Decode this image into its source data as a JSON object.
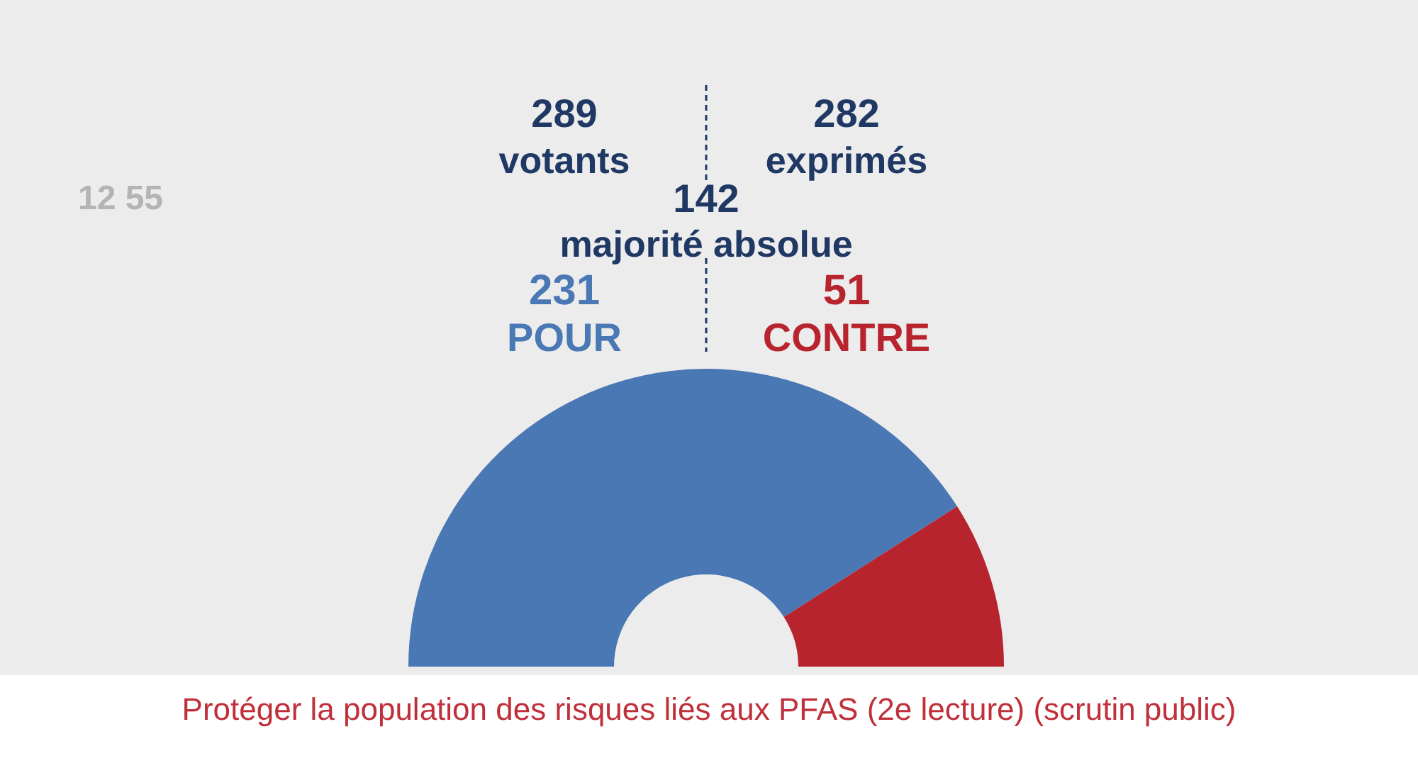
{
  "chart_data": {
    "type": "other",
    "title": "Protéger la population des risques liés aux PFAS (2e lecture) (scrutin public)",
    "categories": [
      "POUR",
      "CONTRE"
    ],
    "values": [
      231,
      51
    ],
    "colors": [
      "#4a78b5",
      "#b8242e"
    ],
    "data_labels": true,
    "annotations": [
      "289",
      "votants",
      "282",
      "exprimés",
      "142",
      "majorité absolue",
      "12 55"
    ]
  }
}
